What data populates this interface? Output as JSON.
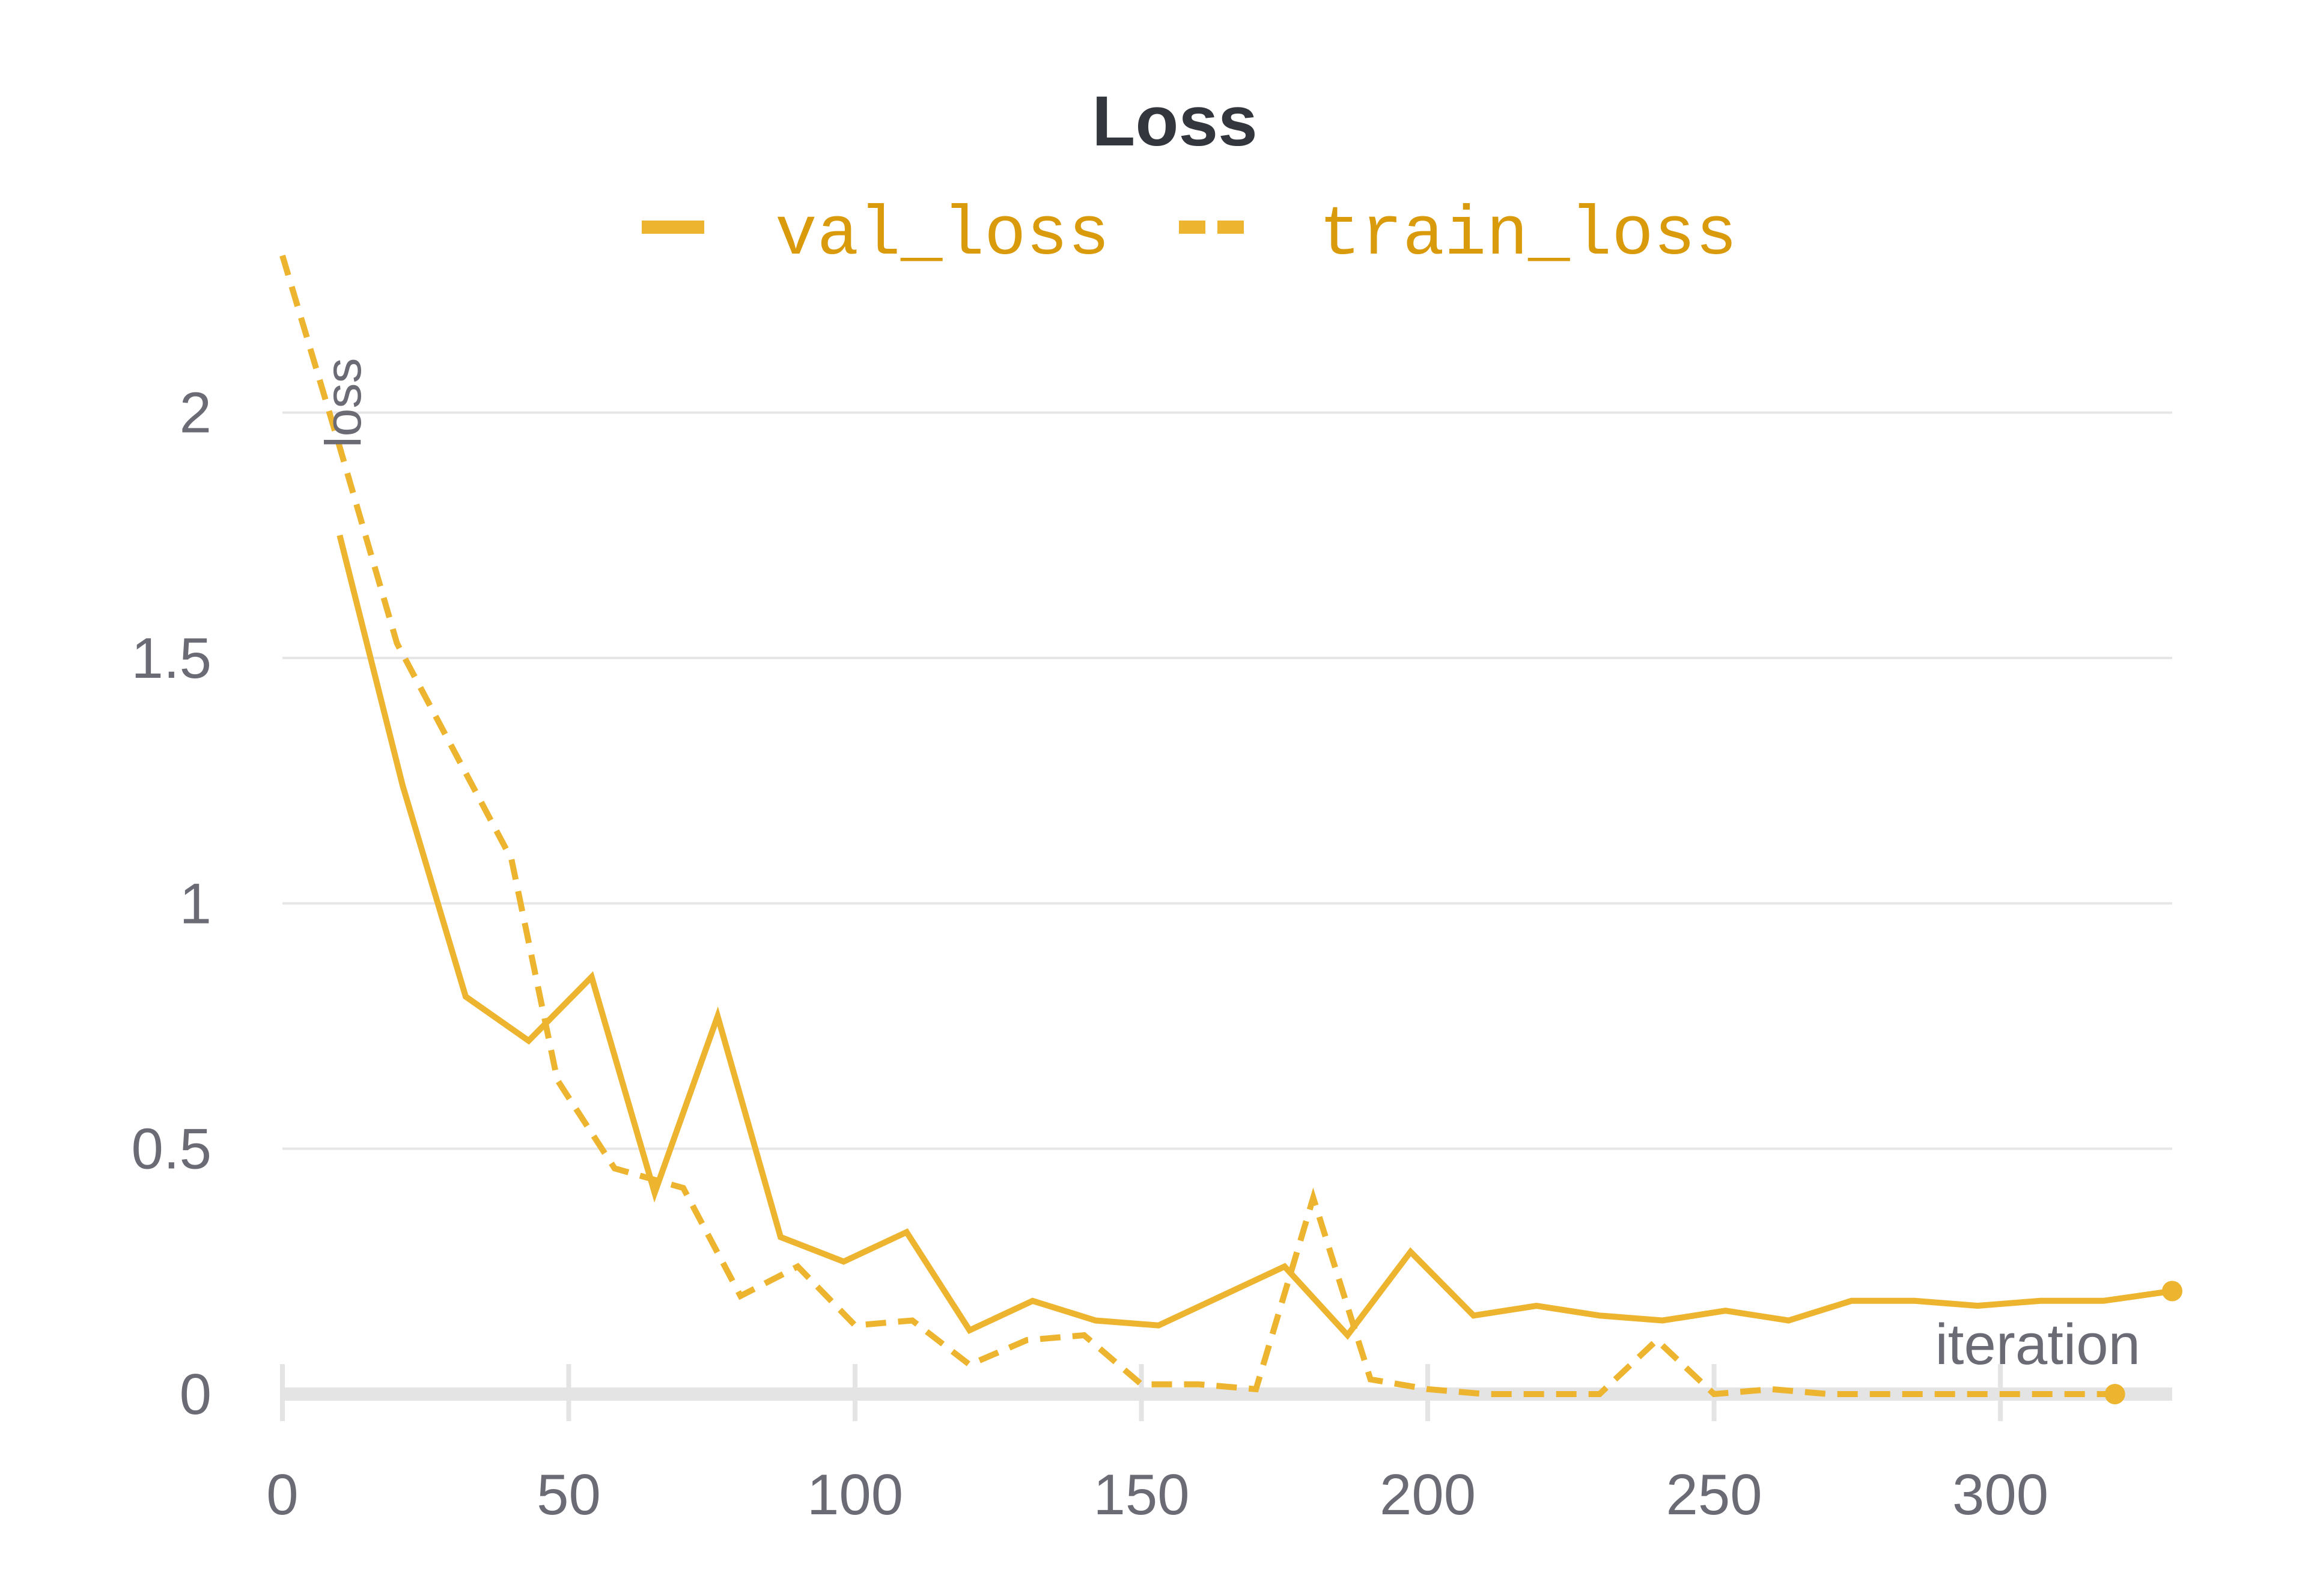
{
  "chart_data": {
    "type": "line",
    "title": "Loss",
    "xlabel": "iteration",
    "ylabel": "loss",
    "xlim": [
      0,
      330
    ],
    "ylim": [
      0,
      2.4
    ],
    "xticks": [
      0,
      50,
      100,
      150,
      200,
      250,
      300
    ],
    "xtick_labels": [
      "0",
      "50",
      "100",
      "150",
      "200",
      "250",
      "300"
    ],
    "yticks": [
      0,
      0.5,
      1,
      1.5,
      2
    ],
    "ytick_labels": [
      "0",
      "0.5",
      "1",
      "1.5",
      "2"
    ],
    "grid": "horizontal",
    "legend_position": "top",
    "series": [
      {
        "name": "val_loss",
        "style": "solid",
        "color": "#EDB52F",
        "legend_color": "#D99A0C",
        "x": [
          10,
          21,
          32,
          43,
          54,
          65,
          76,
          87,
          98,
          109,
          120,
          131,
          142,
          153,
          164,
          175,
          186,
          197,
          208,
          219,
          230,
          241,
          252,
          263,
          274,
          285,
          296,
          307,
          318,
          330
        ],
        "y": [
          1.75,
          1.24,
          0.81,
          0.72,
          0.85,
          0.41,
          0.77,
          0.32,
          0.27,
          0.33,
          0.13,
          0.19,
          0.15,
          0.14,
          0.2,
          0.26,
          0.12,
          0.29,
          0.16,
          0.18,
          0.16,
          0.15,
          0.17,
          0.15,
          0.19,
          0.19,
          0.18,
          0.19,
          0.19,
          0.21
        ]
      },
      {
        "name": "train_loss",
        "style": "dashed",
        "color": "#EDB52F",
        "legend_color": "#D99A0C",
        "x": [
          0,
          10,
          20,
          30,
          40,
          48,
          58,
          70,
          80,
          90,
          100,
          110,
          120,
          130,
          140,
          150,
          160,
          170,
          180,
          190,
          200,
          210,
          220,
          230,
          240,
          250,
          260,
          270,
          280,
          290,
          300,
          310,
          320
        ],
        "y": [
          2.32,
          1.93,
          1.53,
          1.31,
          1.09,
          0.64,
          0.46,
          0.42,
          0.2,
          0.26,
          0.14,
          0.15,
          0.06,
          0.11,
          0.12,
          0.02,
          0.02,
          0.01,
          0.4,
          0.03,
          0.01,
          0.0,
          0.0,
          0.0,
          0.11,
          0.0,
          0.01,
          0.0,
          0.0,
          0.0,
          0.0,
          0.0,
          0.0
        ]
      }
    ]
  }
}
